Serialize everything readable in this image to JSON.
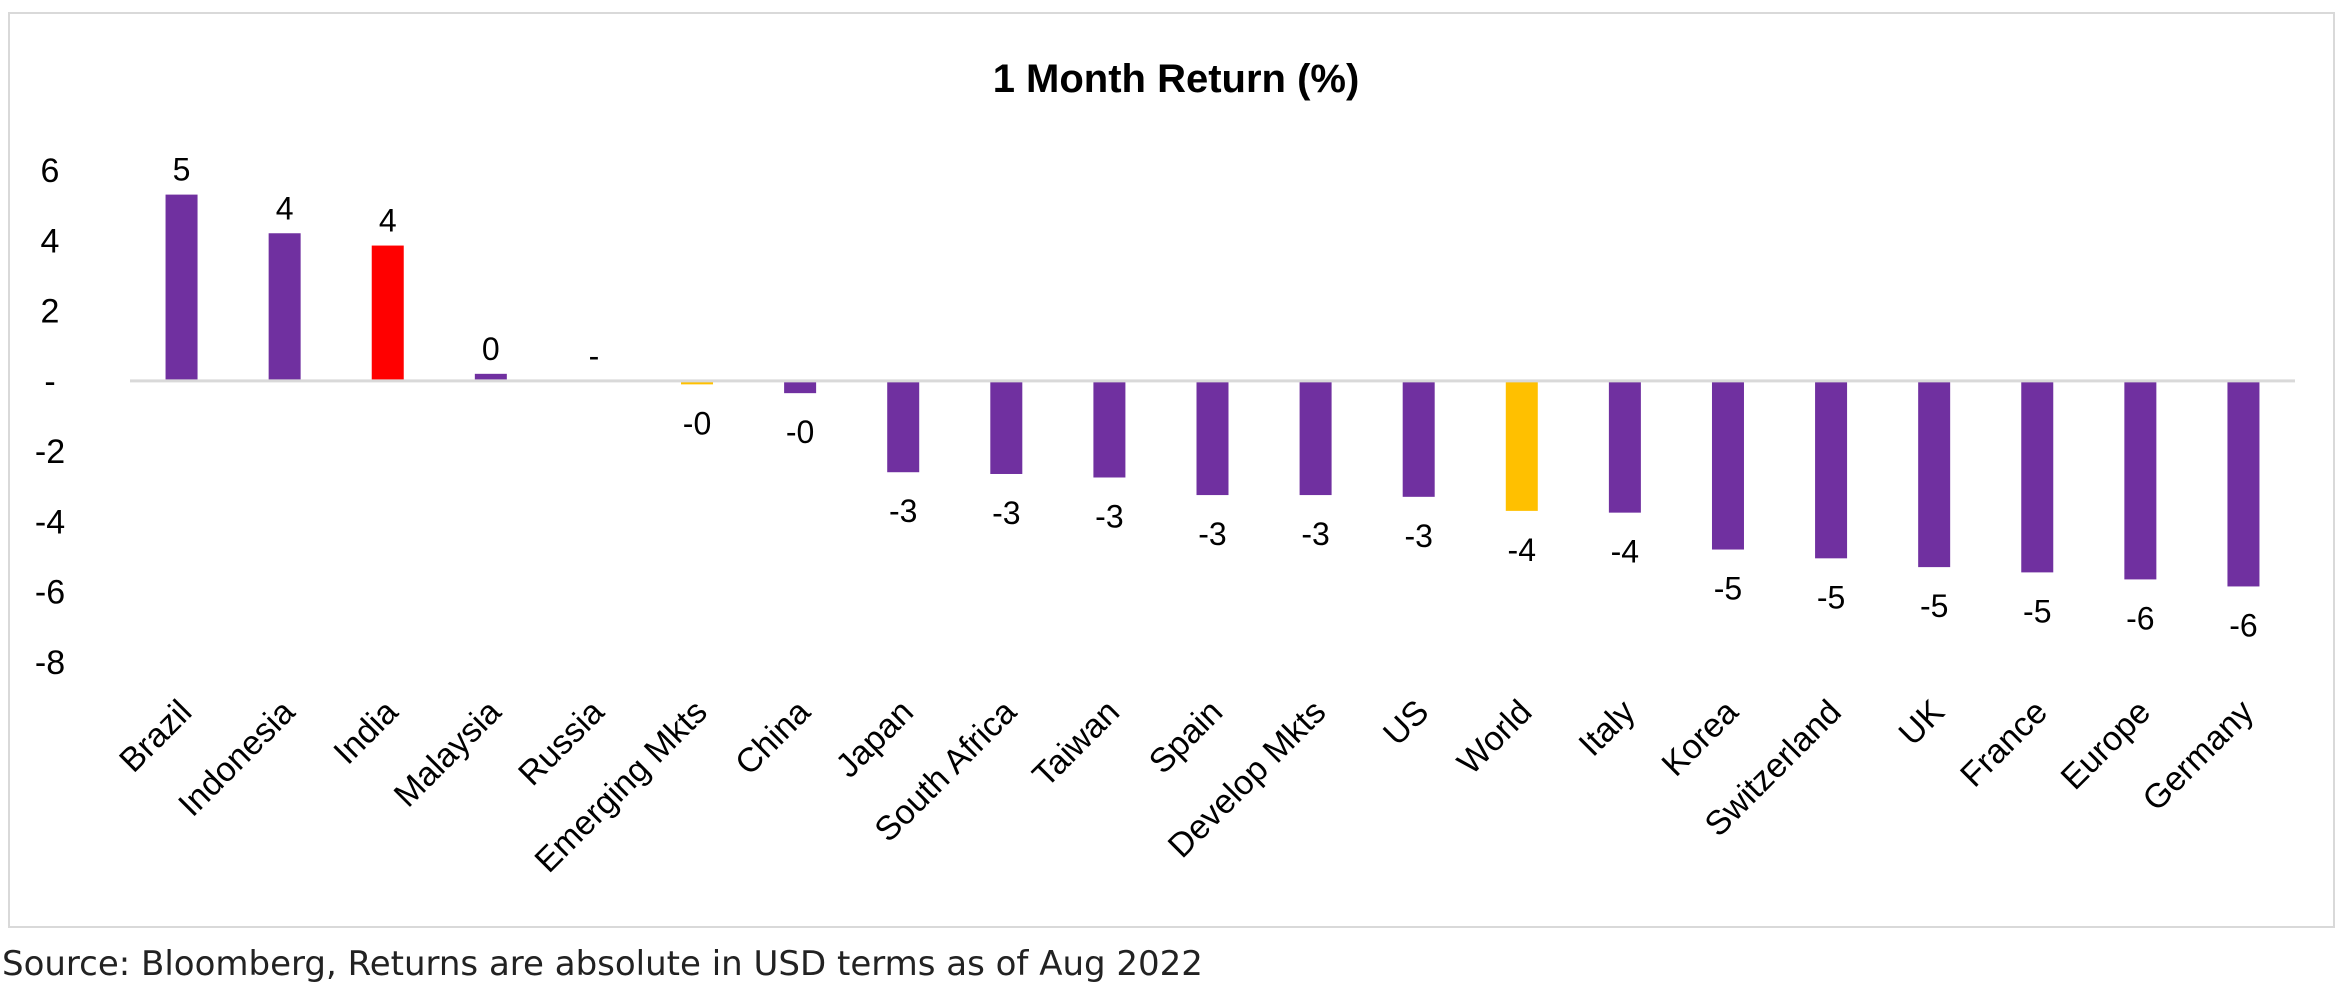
{
  "chart_data": {
    "type": "bar",
    "title": "1 Month Return (%)",
    "xlabel": "",
    "ylabel": "",
    "ylim": [
      -8,
      6
    ],
    "yticks": [
      {
        "value": 6,
        "label": "6"
      },
      {
        "value": 4,
        "label": "4"
      },
      {
        "value": 2,
        "label": "2"
      },
      {
        "value": 0,
        "label": "-"
      },
      {
        "value": -2,
        "label": "-2"
      },
      {
        "value": -4,
        "label": "-4"
      },
      {
        "value": -6,
        "label": "-6"
      },
      {
        "value": -8,
        "label": "-8"
      }
    ],
    "categories": [
      "Brazil",
      "Indonesia",
      "India",
      "Malaysia",
      "Russia",
      "Emerging Mkts",
      "China",
      "Japan",
      "South Africa",
      "Taiwan",
      "Spain",
      "Develop Mkts",
      "US",
      "World",
      "Italy",
      "Korea",
      "Switzerland",
      "UK",
      "France",
      "Europe",
      "Germany"
    ],
    "values": [
      5.3,
      4.2,
      3.85,
      0.2,
      0,
      -0.1,
      -0.35,
      -2.6,
      -2.65,
      -2.75,
      -3.25,
      -3.25,
      -3.3,
      -3.7,
      -3.75,
      -4.8,
      -5.05,
      -5.3,
      -5.45,
      -5.65,
      -5.85
    ],
    "data_labels": [
      "5",
      "4",
      "4",
      "0",
      "-",
      "-0",
      "-0",
      "-3",
      "-3",
      "-3",
      "-3",
      "-3",
      "-3",
      "-4",
      "-4",
      "-5",
      "-5",
      "-5",
      "-5",
      "-6",
      "-6"
    ],
    "bar_colors": [
      "#7030a0",
      "#7030a0",
      "#ff0000",
      "#7030a0",
      "#7030a0",
      "#ffc000",
      "#7030a0",
      "#7030a0",
      "#7030a0",
      "#7030a0",
      "#7030a0",
      "#7030a0",
      "#7030a0",
      "#ffc000",
      "#7030a0",
      "#7030a0",
      "#7030a0",
      "#7030a0",
      "#7030a0",
      "#7030a0",
      "#7030a0"
    ],
    "grid": false,
    "legend": "none"
  },
  "footer": {
    "source": "Source: Bloomberg, Returns are absolute in USD terms as of Aug 2022"
  }
}
